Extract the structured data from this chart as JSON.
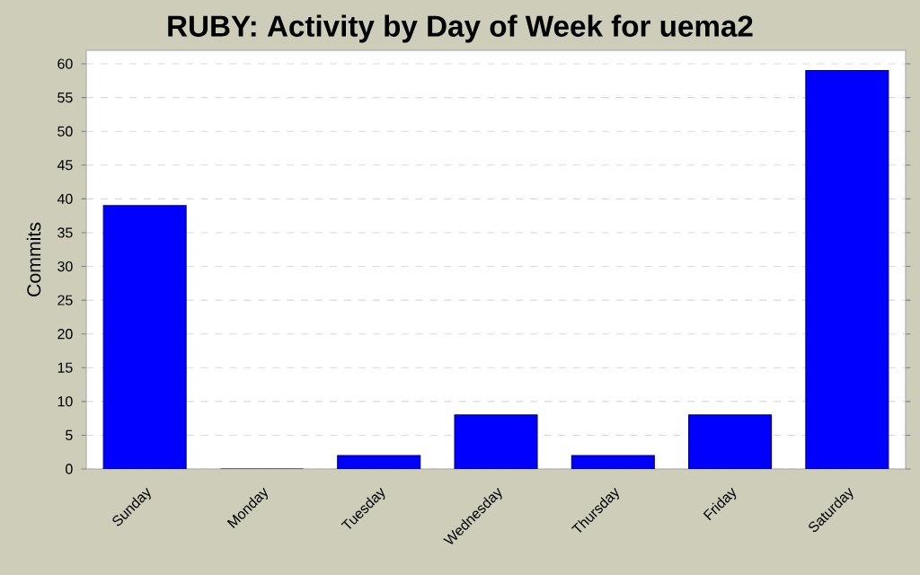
{
  "chart_data": {
    "type": "bar",
    "title": "RUBY: Activity by Day of Week for uema2",
    "ylabel": "Commits",
    "categories": [
      "Sunday",
      "Monday",
      "Tuesday",
      "Wednesday",
      "Thursday",
      "Friday",
      "Saturday"
    ],
    "values": [
      39,
      0,
      2,
      8,
      2,
      8,
      59
    ],
    "color": "#0000ff",
    "ylim": [
      0,
      62
    ],
    "yticks": [
      0,
      5,
      10,
      15,
      20,
      25,
      30,
      35,
      40,
      45,
      50,
      55,
      60
    ],
    "grid": "y"
  }
}
